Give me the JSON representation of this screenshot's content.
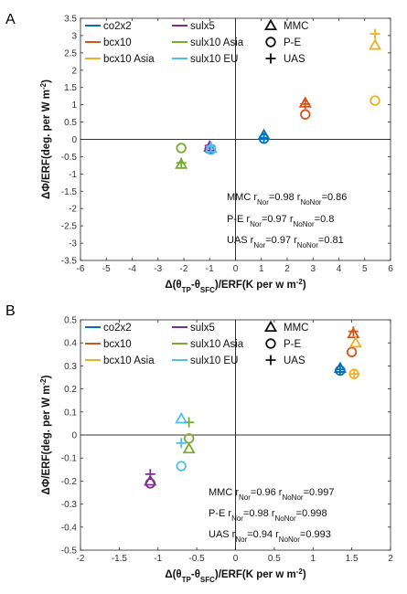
{
  "chart_data": [
    {
      "panel": "A",
      "type": "scatter",
      "xlabel": "Δ(θ_TP-θ_SFC)/ERF(K per w m⁻²)",
      "ylabel": "ΔΦ/ERF(deg. per W m⁻²)",
      "xlim": [
        -6,
        6
      ],
      "ylim": [
        -3.5,
        3.5
      ],
      "xticks": [
        "-6",
        "-5",
        "-4",
        "-3",
        "-2",
        "-1",
        "0",
        "1",
        "2",
        "3",
        "4",
        "5",
        "6"
      ],
      "yticks": [
        "-3.5",
        "-3",
        "-2.5",
        "-2",
        "-1.5",
        "-1",
        "-0.5",
        "0",
        "0.5",
        "1",
        "1.5",
        "2",
        "2.5",
        "3",
        "3.5"
      ],
      "grid": false,
      "legend": {
        "placement": "top-left",
        "experiments": [
          {
            "name": "co2x2",
            "color": "#0072bd"
          },
          {
            "name": "bcx10",
            "color": "#d95319"
          },
          {
            "name": "bcx10 Asia",
            "color": "#edb120"
          },
          {
            "name": "sulx5",
            "color": "#7e2f8e"
          },
          {
            "name": "sulx10 Asia",
            "color": "#77ac30"
          },
          {
            "name": "sulx10 EU",
            "color": "#4dbeee"
          }
        ],
        "metrics": [
          {
            "name": "MMC",
            "marker": "triangle"
          },
          {
            "name": "P-E",
            "marker": "circle"
          },
          {
            "name": "UAS",
            "marker": "plus"
          }
        ]
      },
      "points": [
        {
          "experiment": "co2x2",
          "metric": "MMC",
          "x": 1.1,
          "y": 0.12
        },
        {
          "experiment": "co2x2",
          "metric": "P-E",
          "x": 1.1,
          "y": 0.02
        },
        {
          "experiment": "co2x2",
          "metric": "UAS",
          "x": 1.1,
          "y": 0.05
        },
        {
          "experiment": "bcx10",
          "metric": "MMC",
          "x": 2.7,
          "y": 1.05
        },
        {
          "experiment": "bcx10",
          "metric": "P-E",
          "x": 2.7,
          "y": 0.72
        },
        {
          "experiment": "bcx10",
          "metric": "UAS",
          "x": 2.7,
          "y": 1.02
        },
        {
          "experiment": "bcx10 Asia",
          "metric": "MMC",
          "x": 5.4,
          "y": 2.72
        },
        {
          "experiment": "bcx10 Asia",
          "metric": "P-E",
          "x": 5.4,
          "y": 1.12
        },
        {
          "experiment": "bcx10 Asia",
          "metric": "UAS",
          "x": 5.4,
          "y": 3.05
        },
        {
          "experiment": "sulx5",
          "metric": "MMC",
          "x": -1.0,
          "y": -0.22
        },
        {
          "experiment": "sulx5",
          "metric": "P-E",
          "x": -1.0,
          "y": -0.28
        },
        {
          "experiment": "sulx5",
          "metric": "UAS",
          "x": -1.0,
          "y": -0.18
        },
        {
          "experiment": "sulx10 Asia",
          "metric": "MMC",
          "x": -2.1,
          "y": -0.72
        },
        {
          "experiment": "sulx10 Asia",
          "metric": "P-E",
          "x": -2.1,
          "y": -0.25
        },
        {
          "experiment": "sulx10 Asia",
          "metric": "UAS",
          "x": -2.1,
          "y": -0.68
        },
        {
          "experiment": "sulx10 EU",
          "metric": "MMC",
          "x": -0.95,
          "y": -0.25
        },
        {
          "experiment": "sulx10 EU",
          "metric": "P-E",
          "x": -0.95,
          "y": -0.3
        },
        {
          "experiment": "sulx10 EU",
          "metric": "UAS",
          "x": -0.95,
          "y": -0.2
        }
      ],
      "annotations": [
        {
          "metric": "MMC",
          "r_nor": "0.98",
          "r_nonor": "0.86"
        },
        {
          "metric": "P-E",
          "r_nor": "0.97",
          "r_nonor": "0.8"
        },
        {
          "metric": "UAS",
          "r_nor": "0.97",
          "r_nonor": "0.81"
        }
      ]
    },
    {
      "panel": "B",
      "type": "scatter",
      "xlabel": "Δ(θ_TP-θ_SFC)/ERF(K per w m⁻²)",
      "ylabel": "ΔΦ/ERF(deg. per W m⁻²)",
      "xlim": [
        -2,
        2
      ],
      "ylim": [
        -0.5,
        0.5
      ],
      "xticks": [
        "-2",
        "-1.5",
        "-1",
        "-0.5",
        "0",
        "0.5",
        "1",
        "1.5",
        "2"
      ],
      "yticks": [
        "-0.5",
        "-0.4",
        "-0.3",
        "-0.2",
        "-0.1",
        "0",
        "0.1",
        "0.2",
        "0.3",
        "0.4",
        "0.5"
      ],
      "grid": false,
      "legend": {
        "placement": "top-left",
        "experiments": [
          {
            "name": "co2x2",
            "color": "#0072bd"
          },
          {
            "name": "bcx10",
            "color": "#d95319"
          },
          {
            "name": "bcx10 Asia",
            "color": "#edb120"
          },
          {
            "name": "sulx5",
            "color": "#7e2f8e"
          },
          {
            "name": "sulx10 Asia",
            "color": "#77ac30"
          },
          {
            "name": "sulx10 EU",
            "color": "#4dbeee"
          }
        ],
        "metrics": [
          {
            "name": "MMC",
            "marker": "triangle"
          },
          {
            "name": "P-E",
            "marker": "circle"
          },
          {
            "name": "UAS",
            "marker": "plus"
          }
        ]
      },
      "points": [
        {
          "experiment": "co2x2",
          "metric": "MMC",
          "x": 1.35,
          "y": 0.29
        },
        {
          "experiment": "co2x2",
          "metric": "P-E",
          "x": 1.35,
          "y": 0.28
        },
        {
          "experiment": "co2x2",
          "metric": "UAS",
          "x": 1.35,
          "y": 0.285
        },
        {
          "experiment": "bcx10",
          "metric": "MMC",
          "x": 1.52,
          "y": 0.44
        },
        {
          "experiment": "bcx10",
          "metric": "P-E",
          "x": 1.5,
          "y": 0.36
        },
        {
          "experiment": "bcx10",
          "metric": "UAS",
          "x": 1.52,
          "y": 0.45
        },
        {
          "experiment": "bcx10 Asia",
          "metric": "MMC",
          "x": 1.55,
          "y": 0.4
        },
        {
          "experiment": "bcx10 Asia",
          "metric": "P-E",
          "x": 1.53,
          "y": 0.265
        },
        {
          "experiment": "bcx10 Asia",
          "metric": "UAS",
          "x": 1.53,
          "y": 0.265
        },
        {
          "experiment": "sulx5",
          "metric": "MMC",
          "x": -1.1,
          "y": -0.2
        },
        {
          "experiment": "sulx5",
          "metric": "P-E",
          "x": -1.1,
          "y": -0.21
        },
        {
          "experiment": "sulx5",
          "metric": "UAS",
          "x": -1.1,
          "y": -0.17
        },
        {
          "experiment": "sulx10 Asia",
          "metric": "MMC",
          "x": -0.6,
          "y": -0.06
        },
        {
          "experiment": "sulx10 Asia",
          "metric": "P-E",
          "x": -0.6,
          "y": -0.015
        },
        {
          "experiment": "sulx10 Asia",
          "metric": "UAS",
          "x": -0.6,
          "y": 0.055
        },
        {
          "experiment": "sulx10 EU",
          "metric": "MMC",
          "x": -0.7,
          "y": 0.07
        },
        {
          "experiment": "sulx10 EU",
          "metric": "P-E",
          "x": -0.7,
          "y": -0.135
        },
        {
          "experiment": "sulx10 EU",
          "metric": "UAS",
          "x": -0.7,
          "y": -0.035
        }
      ],
      "annotations": [
        {
          "metric": "MMC",
          "r_nor": "0.96",
          "r_nonor": "0.997"
        },
        {
          "metric": "P-E",
          "r_nor": "0.98",
          "r_nonor": "0.998"
        },
        {
          "metric": "UAS",
          "r_nor": "0.94",
          "r_nonor": "0.993"
        }
      ]
    }
  ]
}
